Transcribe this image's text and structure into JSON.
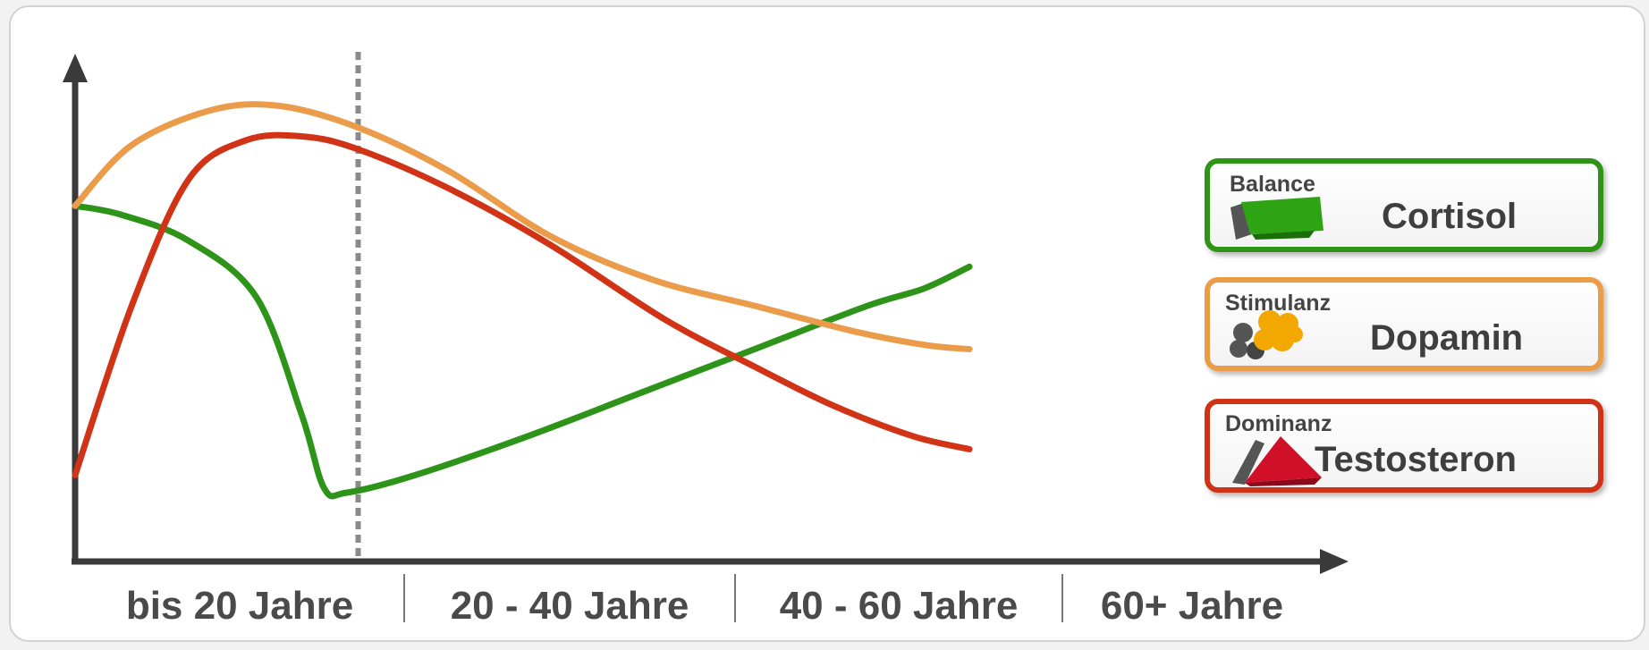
{
  "chart_data": {
    "type": "line",
    "categories": [
      "bis 20 Jahre",
      "20 - 40 Jahre",
      "40 - 60 Jahre",
      "60+ Jahre"
    ],
    "x_range": [
      0,
      100
    ],
    "y_range": [
      0,
      100
    ],
    "grid": false,
    "divider_at": 25,
    "series": [
      {
        "name": "Cortisol",
        "label": "Balance",
        "color": "#2e9419",
        "points": [
          [
            0,
            73
          ],
          [
            4,
            71
          ],
          [
            10,
            65
          ],
          [
            16,
            52
          ],
          [
            20,
            25
          ],
          [
            22,
            8
          ],
          [
            24,
            7
          ],
          [
            30,
            11
          ],
          [
            40,
            20
          ],
          [
            50,
            30
          ],
          [
            60,
            40
          ],
          [
            70,
            50
          ],
          [
            75,
            54
          ],
          [
            79,
            59
          ]
        ]
      },
      {
        "name": "Dopamin",
        "label": "Stimulanz",
        "color": "#eb9c4a",
        "points": [
          [
            0,
            73
          ],
          [
            5,
            87
          ],
          [
            12,
            95
          ],
          [
            18,
            96
          ],
          [
            25,
            91
          ],
          [
            33,
            81
          ],
          [
            42,
            66
          ],
          [
            51,
            56
          ],
          [
            60,
            50
          ],
          [
            69,
            44
          ],
          [
            75,
            41
          ],
          [
            79,
            40
          ]
        ]
      },
      {
        "name": "Testosteron",
        "label": "Dominanz",
        "color": "#d03316",
        "points": [
          [
            0,
            11
          ],
          [
            5,
            50
          ],
          [
            10,
            79
          ],
          [
            15,
            88
          ],
          [
            20,
            89
          ],
          [
            25,
            86
          ],
          [
            33,
            77
          ],
          [
            42,
            64
          ],
          [
            52,
            47
          ],
          [
            60,
            36
          ],
          [
            67,
            27
          ],
          [
            74,
            20
          ],
          [
            79,
            17
          ]
        ]
      }
    ]
  }
}
